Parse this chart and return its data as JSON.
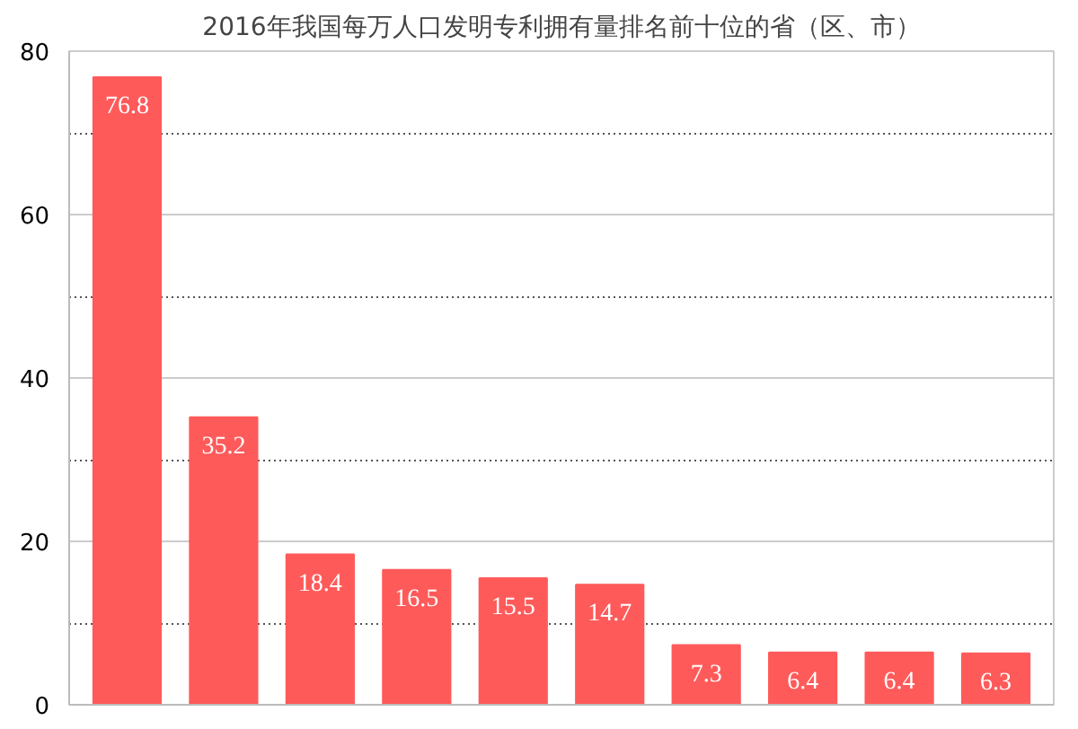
{
  "chart_data": {
    "type": "bar",
    "title": "2016年我国每万人口发明专利拥有量排名前十位的省（区、市）",
    "categories": [
      null,
      null,
      null,
      null,
      null,
      null,
      null,
      null,
      null,
      null
    ],
    "values": [
      76.8,
      35.2,
      18.4,
      16.5,
      15.5,
      14.7,
      7.3,
      6.4,
      6.4,
      6.3
    ],
    "color": "#ff5a5a",
    "data_labels": true,
    "grid": "y",
    "ylim": [
      0,
      80
    ],
    "yticks": [
      0,
      {
        "value": 10,
        "label": null
      },
      20,
      {
        "value": 30,
        "label": null
      },
      40,
      {
        "value": 50,
        "label": null
      },
      60,
      {
        "value": 70,
        "label": null
      },
      80
    ]
  }
}
